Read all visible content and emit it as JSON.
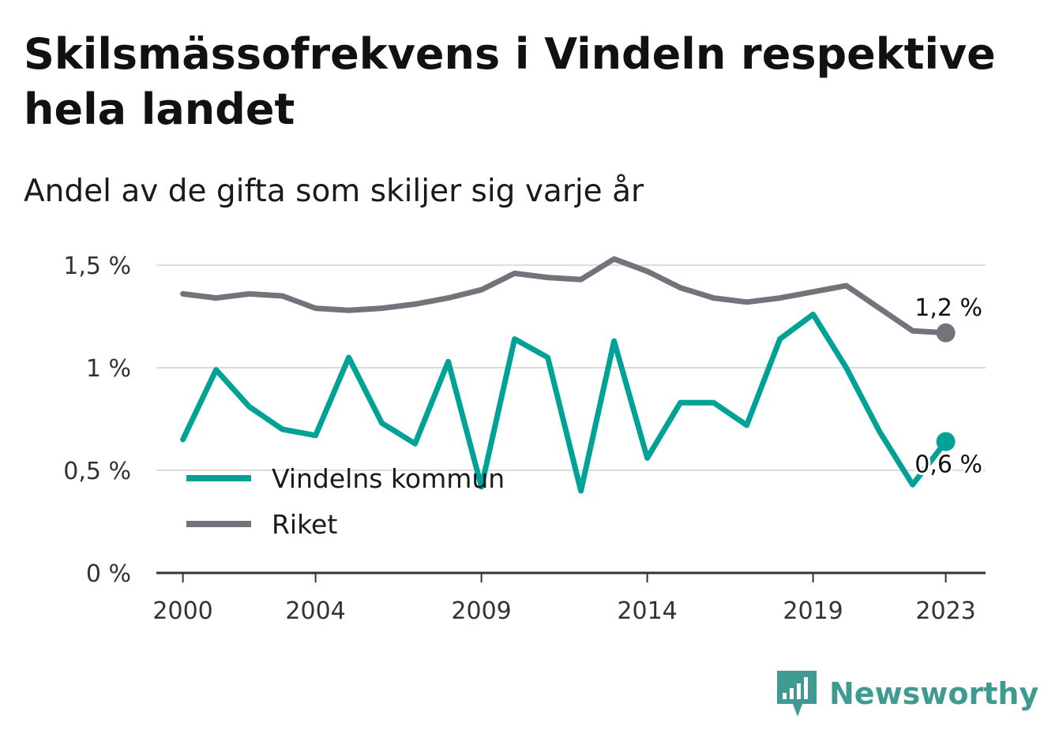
{
  "header": {
    "title": "Skilsmässofrekvens i Vindeln respektive hela landet",
    "subtitle": "Andel av de gifta som skiljer sig varje år"
  },
  "brand": {
    "name": "Newsworthy",
    "icon": "newsworthy-logo-icon",
    "color": "#3f9a92"
  },
  "chart_data": {
    "type": "line",
    "title": "Skilsmässofrekvens i Vindeln respektive hela landet",
    "subtitle": "Andel av de gifta som skiljer sig varje år",
    "x": [
      2000,
      2001,
      2002,
      2003,
      2004,
      2005,
      2006,
      2007,
      2008,
      2009,
      2010,
      2011,
      2012,
      2013,
      2014,
      2015,
      2016,
      2017,
      2018,
      2019,
      2020,
      2021,
      2022,
      2023
    ],
    "xticks": [
      2000,
      2004,
      2009,
      2014,
      2019,
      2023
    ],
    "xtick_labels": [
      "2000",
      "2004",
      "2009",
      "2014",
      "2019",
      "2023"
    ],
    "xlim": [
      1999.2,
      2024.2
    ],
    "ylim": [
      0,
      1.6
    ],
    "yticks": [
      0,
      0.5,
      1,
      1.5
    ],
    "ytick_labels": [
      "0 %",
      "0,5 %",
      "1 %",
      "1,5 %"
    ],
    "grid": true,
    "legend_position": "bottom-left",
    "series": [
      {
        "name": "Vindelns kommun",
        "color": "#00a197",
        "values": [
          0.65,
          0.99,
          0.81,
          0.7,
          0.67,
          1.05,
          0.73,
          0.63,
          1.03,
          0.42,
          1.14,
          1.05,
          0.4,
          1.13,
          0.56,
          0.83,
          0.83,
          0.72,
          1.14,
          1.26,
          1.0,
          0.69,
          0.43,
          0.64
        ],
        "end_label": "0,6 %"
      },
      {
        "name": "Riket",
        "color": "#74727a",
        "values": [
          1.36,
          1.34,
          1.36,
          1.35,
          1.29,
          1.28,
          1.29,
          1.31,
          1.34,
          1.38,
          1.46,
          1.44,
          1.43,
          1.53,
          1.47,
          1.39,
          1.34,
          1.32,
          1.34,
          1.37,
          1.4,
          1.29,
          1.18,
          1.17
        ],
        "end_label": "1,2 %"
      }
    ]
  }
}
